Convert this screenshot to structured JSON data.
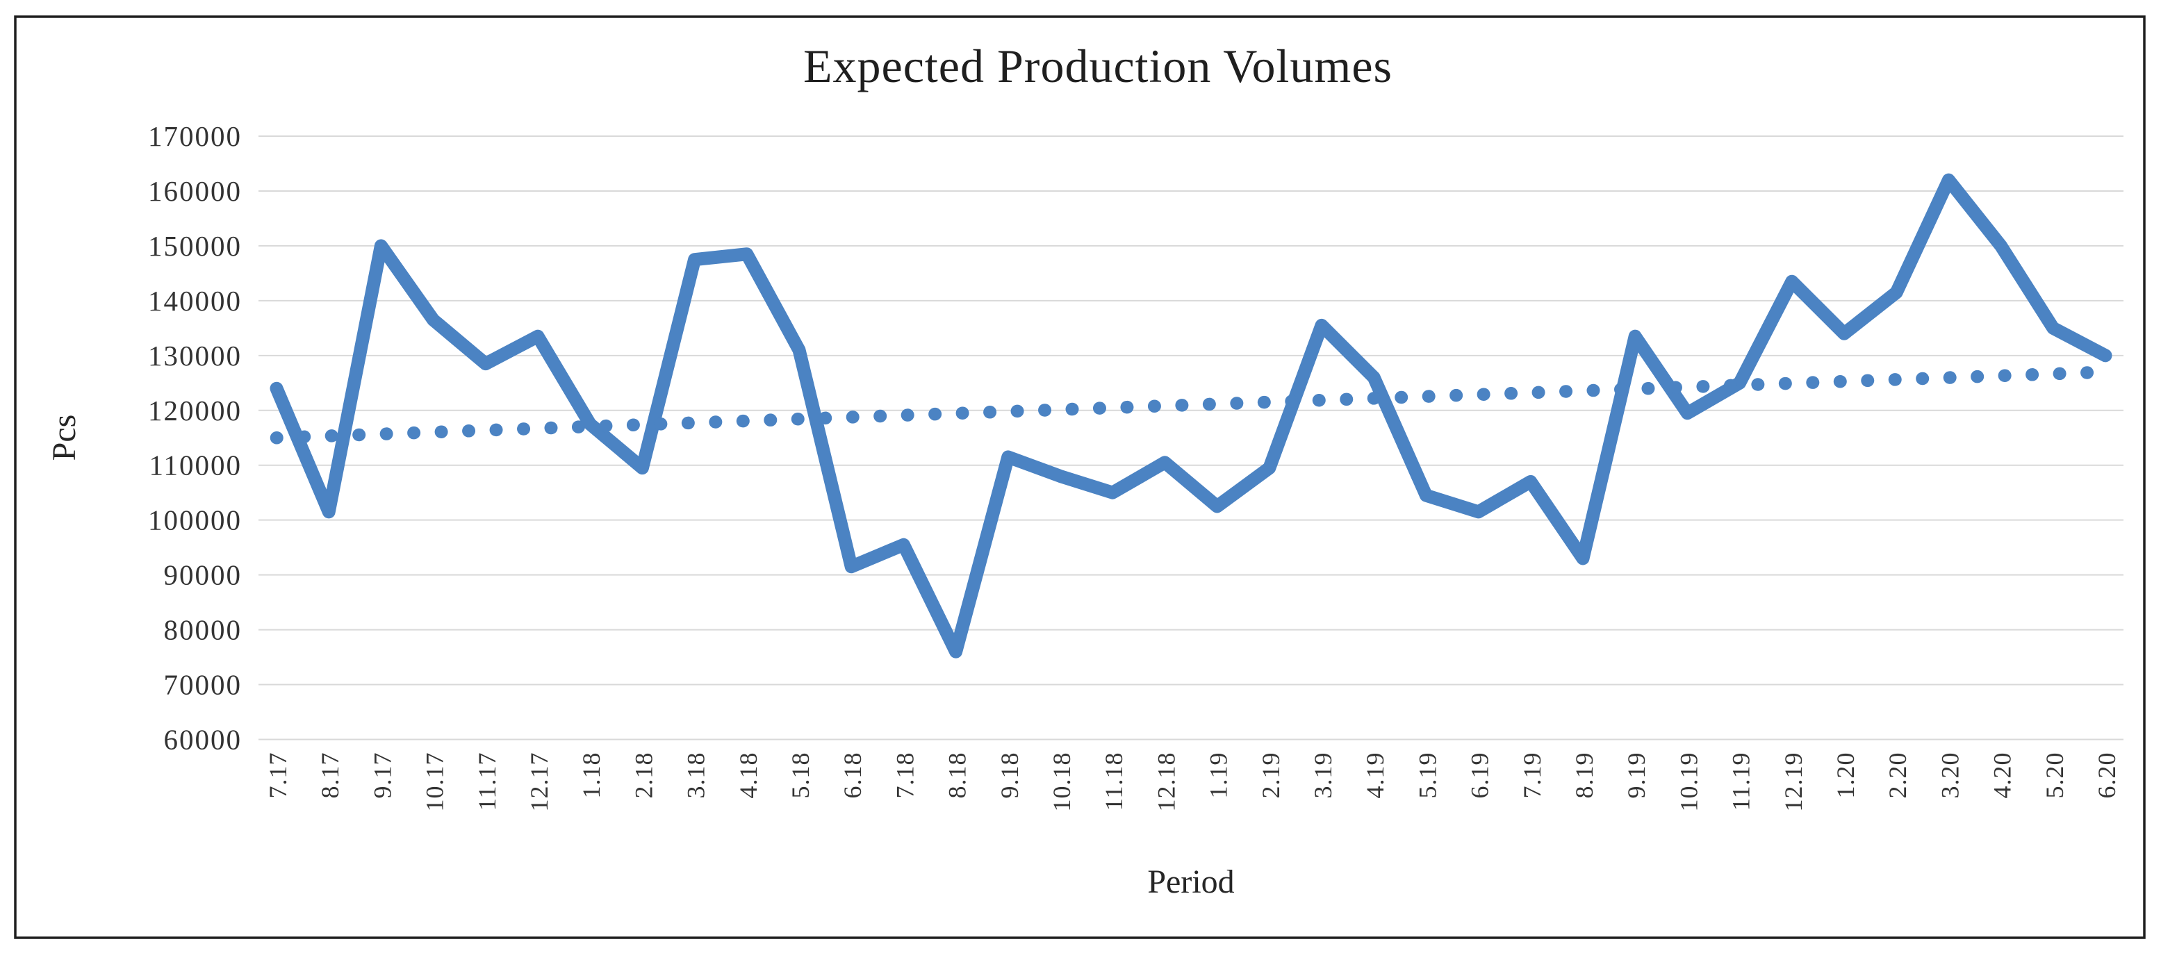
{
  "figure": {
    "background_color": "#ffffff",
    "border_color": "#1f1f1f"
  },
  "chart_data": {
    "type": "line",
    "title": "Expected Production Volumes",
    "xlabel": "Period",
    "ylabel": "Pcs",
    "ylim": [
      60000,
      170000
    ],
    "ytick_step": 10000,
    "ytick_labels": [
      "170000",
      "160000",
      "150000",
      "140000",
      "130000",
      "120000",
      "110000",
      "100000",
      "90000",
      "80000",
      "70000",
      "60000"
    ],
    "categories": [
      "7.17",
      "8.17",
      "9.17",
      "10.17",
      "11.17",
      "12.17",
      "1.18",
      "2.18",
      "3.18",
      "4.18",
      "5.18",
      "6.18",
      "7.18",
      "8.18",
      "9.18",
      "10.18",
      "11.18",
      "12.18",
      "1.19",
      "2.19",
      "3.19",
      "4.19",
      "5.19",
      "6.19",
      "7.19",
      "8.19",
      "9.19",
      "10.19",
      "11.19",
      "12.19",
      "1.20",
      "2.20",
      "3.20",
      "4.20",
      "5.20",
      "6.20"
    ],
    "series": [
      {
        "role": "data-line",
        "style": "solid",
        "color": "#4B83C3",
        "values": [
          124000,
          101500,
          150000,
          136500,
          128500,
          133500,
          117500,
          109500,
          147500,
          148500,
          131000,
          91500,
          95500,
          76000,
          111500,
          108000,
          105000,
          110500,
          102500,
          109500,
          135500,
          126000,
          104500,
          101500,
          107000,
          93000,
          133500,
          119500,
          125000,
          143500,
          134000,
          141500,
          162000,
          150000,
          135000,
          130000
        ]
      },
      {
        "role": "trend-line",
        "style": "dotted",
        "color": "#4B83C3",
        "trend_start": 115000,
        "trend_end": 127000
      }
    ],
    "grid": true,
    "grid_color": "#D9D9D9",
    "text_color": "#333333",
    "legend": "none"
  }
}
